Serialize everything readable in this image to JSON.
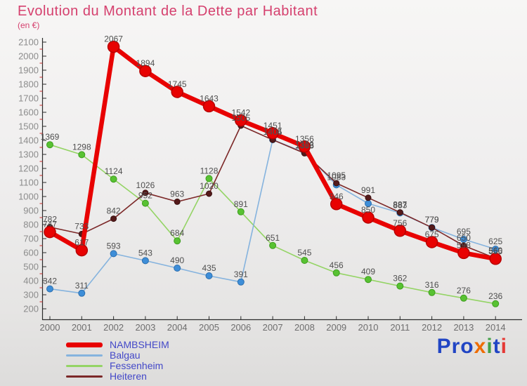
{
  "header": {
    "title": "Evolution du Montant de la Dette par Habitant",
    "subtitle": "(en €)"
  },
  "axes": {
    "y_tick_color": "#8c8c8c",
    "x_tick_color": "#6e6e6e",
    "axis_color": "#2b2b2b",
    "minor_tick_color": "#cc2a2a",
    "data_label_color": "#4f4f4f"
  },
  "chart_data": {
    "type": "line",
    "title": "Evolution du Montant de la Dette par Habitant",
    "ylabel": "en €",
    "ylim": [
      200,
      2100
    ],
    "ytick_step": 100,
    "grid": false,
    "legend_position": "bottom-left",
    "categories": [
      2000,
      2001,
      2002,
      2003,
      2004,
      2005,
      2006,
      2007,
      2008,
      2009,
      2010,
      2011,
      2012,
      2013,
      2014
    ],
    "series": [
      {
        "name": "Fessenheim",
        "line_color": "#94d465",
        "line_width": 1.6,
        "marker_color": "#58c232",
        "marker_stroke": "#3d9d1e",
        "marker_radius": 4.5,
        "values": [
          1369,
          1298,
          1124,
          952,
          684,
          1128,
          891,
          651,
          545,
          456,
          409,
          362,
          316,
          276,
          236
        ],
        "labels": [
          "1369",
          "1298",
          "1124",
          "952",
          "684",
          "1128",
          "891",
          "651",
          "545",
          "456",
          "409",
          "362",
          "316",
          "276",
          "236"
        ]
      },
      {
        "name": "Balgau",
        "line_color": "#85b3de",
        "line_width": 1.6,
        "marker_color": "#3e8ed8",
        "marker_stroke": "#2d6fae",
        "marker_radius": 4.5,
        "values": [
          342,
          311,
          593,
          543,
          490,
          435,
          391,
          1405,
          1313,
          1083,
          950,
          883,
          779,
          695,
          625
        ],
        "labels": [
          "342",
          "311",
          "593",
          "543",
          "490",
          "435",
          "391",
          "1405",
          "1313",
          "1083",
          "",
          "883",
          "779",
          "695",
          "625"
        ]
      },
      {
        "name": "Heiteren",
        "line_color": "#7c2828",
        "line_width": 1.6,
        "marker_color": "#551a1a",
        "marker_stroke": "#3a1010",
        "marker_radius": 4,
        "values": [
          782,
          733,
          842,
          1026,
          963,
          1020,
          1505,
          1404,
          1308,
          1095,
          991,
          887,
          779,
          650,
          560
        ],
        "labels": [
          "782",
          "733",
          "842",
          "1026",
          "963",
          "1020",
          "1505",
          "1404",
          "1308",
          "1095",
          "991",
          "887",
          "779",
          "650",
          "560"
        ]
      },
      {
        "name": "NAMBSHEIM",
        "line_color": "#e80202",
        "line_width": 6.5,
        "marker_color": "#e80202",
        "marker_stroke": "#b80000",
        "marker_radius": 8,
        "values": [
          747,
          617,
          2067,
          1894,
          1745,
          1643,
          1542,
          1451,
          1356,
          946,
          850,
          756,
          675,
          598,
          556
        ],
        "labels": [
          "747",
          "617",
          "2067",
          "1894",
          "1745",
          "1643",
          "1542",
          "1451",
          "1356",
          "946",
          "850",
          "756",
          "675",
          "598",
          "556"
        ]
      }
    ]
  },
  "legend": {
    "items": [
      {
        "label": "NAMBSHEIM",
        "color": "#e80202",
        "thick": true
      },
      {
        "label": "Balgau",
        "color": "#85b3de",
        "thick": false
      },
      {
        "label": "Fessenheim",
        "color": "#94d465",
        "thick": false
      },
      {
        "label": "Heiteren",
        "color": "#7c2828",
        "thick": false
      }
    ]
  },
  "logo": {
    "text": "Proxiti",
    "letters": [
      {
        "ch": "P",
        "color": "#2145c4"
      },
      {
        "ch": "r",
        "color": "#2145c4"
      },
      {
        "ch": "o",
        "color": "#2145c4"
      },
      {
        "ch": "x",
        "color": "#ef6c00"
      },
      {
        "ch": "i",
        "color": "#43a047"
      },
      {
        "ch": "t",
        "color": "#2145c4"
      },
      {
        "ch": "i",
        "color": "#e53935"
      }
    ]
  }
}
